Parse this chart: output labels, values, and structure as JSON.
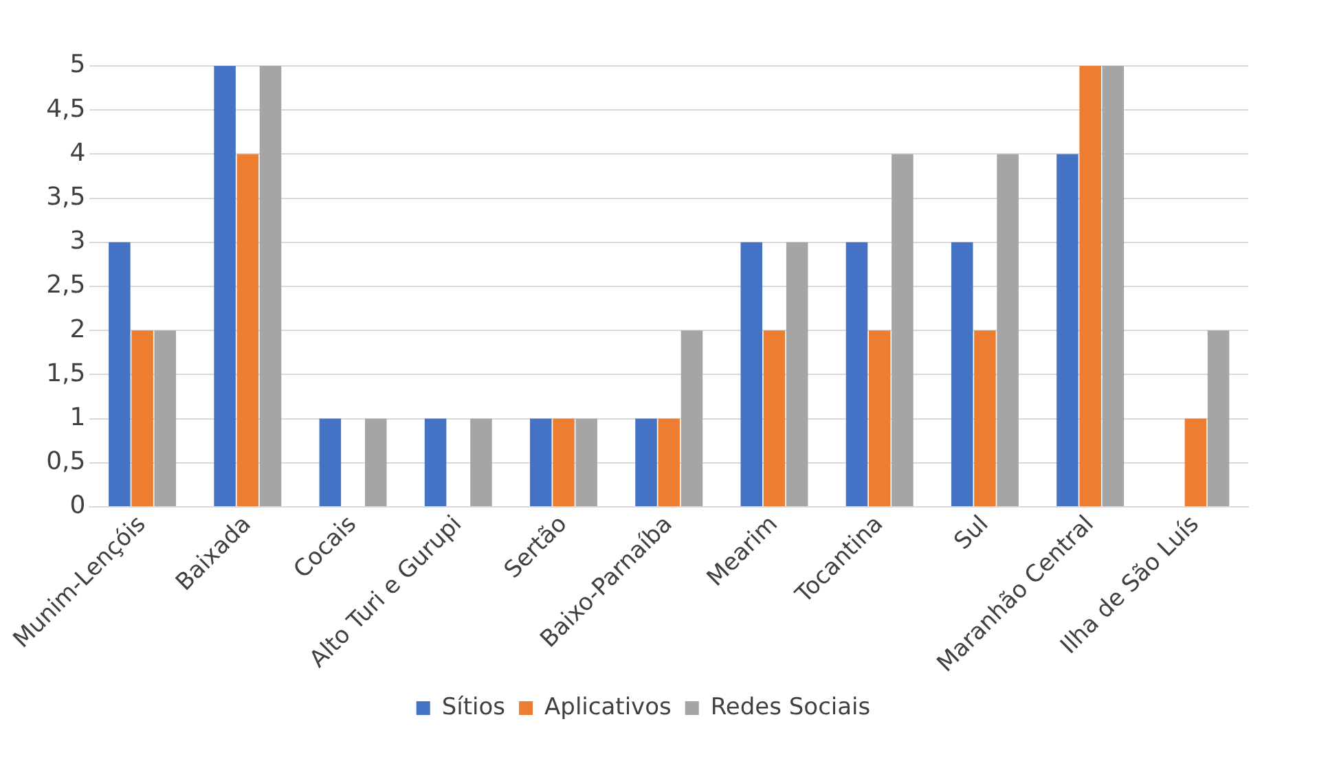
{
  "chart_data": {
    "type": "bar",
    "categories": [
      "Munim-Lençóis",
      "Baixada",
      "Cocais",
      "Alto Turi e Gurupi",
      "Sertão",
      "Baixo-Parnaíba",
      "Mearim",
      "Tocantina",
      "Sul",
      "Maranhão Central",
      "Ilha de São Luís"
    ],
    "series": [
      {
        "name": "Sítios",
        "color": "#4472c4",
        "values": [
          3,
          5,
          1,
          1,
          1,
          1,
          3,
          3,
          3,
          4,
          0
        ]
      },
      {
        "name": "Aplicativos",
        "color": "#ed7d31",
        "values": [
          2,
          4,
          0,
          0,
          1,
          1,
          2,
          2,
          2,
          5,
          1
        ]
      },
      {
        "name": "Redes Sociais",
        "color": "#a5a5a5",
        "values": [
          2,
          5,
          1,
          1,
          1,
          2,
          3,
          4,
          4,
          5,
          2
        ]
      }
    ],
    "ylim": [
      0,
      5
    ],
    "yticks": [
      0,
      {
        "value": 0.5,
        "label": "0,5"
      },
      1,
      {
        "value": 1.5,
        "label": "1,5"
      },
      2,
      {
        "value": 2.5,
        "label": "2,5"
      },
      3,
      {
        "value": 3.5,
        "label": "3,5"
      },
      4,
      {
        "value": 4.5,
        "label": "4,5"
      },
      5
    ],
    "grid": "y",
    "legend": "bottom"
  }
}
